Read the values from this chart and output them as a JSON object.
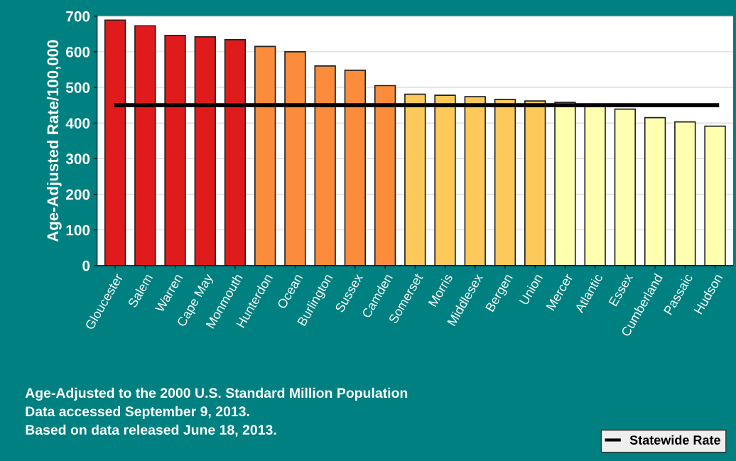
{
  "chart_data": {
    "type": "bar",
    "ylabel": "Age-Adjusted Rate/100,000",
    "categories": [
      "Gloucester",
      "Salem",
      "Warren",
      "Cape May",
      "Monmouth",
      "Hunterdon",
      "Ocean",
      "Burlington",
      "Sussex",
      "Camden",
      "Somerset",
      "Morris",
      "Middlesex",
      "Bergen",
      "Union",
      "Mercer",
      "Atlantic",
      "Essex",
      "Cumberland",
      "Passaic",
      "Hudson"
    ],
    "values": [
      689,
      673,
      646,
      642,
      634,
      615,
      600,
      560,
      548,
      505,
      481,
      478,
      474,
      466,
      462,
      458,
      448,
      439,
      415,
      403,
      391
    ],
    "colors": [
      "#e01b1b",
      "#e01b1b",
      "#e01b1b",
      "#e01b1b",
      "#e01b1b",
      "#fb8c3c",
      "#fb8c3c",
      "#fb8c3c",
      "#fb8c3c",
      "#fb8c3c",
      "#fdc95a",
      "#fdc95a",
      "#fdc95a",
      "#fdc95a",
      "#fdc95a",
      "#ffffb0",
      "#ffffb0",
      "#ffffb0",
      "#ffffb0",
      "#ffffb0",
      "#ffffb0"
    ],
    "ylim": [
      0,
      700
    ],
    "yticks": [
      0,
      100,
      200,
      300,
      400,
      500,
      600,
      700
    ],
    "grid": "y",
    "ref_lines": [
      {
        "axis": "y",
        "value": 450,
        "label": "Statewide Rate",
        "color": "#000000"
      }
    ],
    "legend": "bottom right",
    "annotations": [
      "Age-Adjusted to the 2000 U.S. Standard Million Population",
      "Data accessed September 9, 2013.",
      "Based on data released June 18, 2013."
    ]
  }
}
